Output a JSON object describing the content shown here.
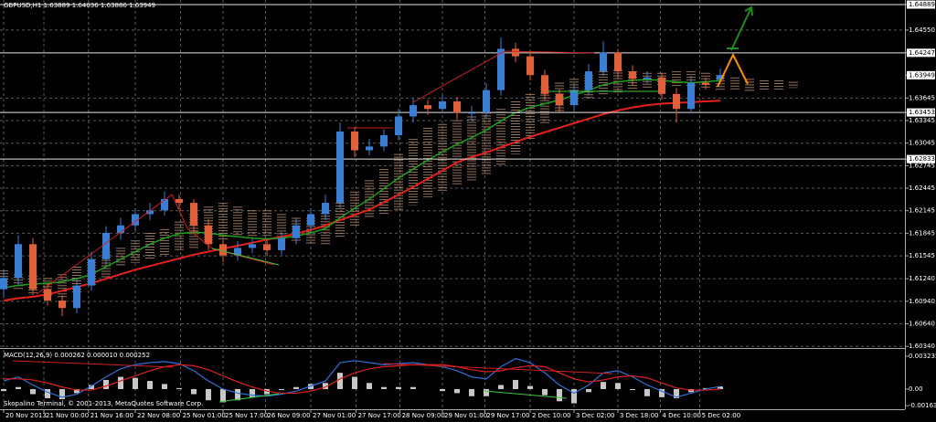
{
  "chart_data": {
    "type": "candlestick",
    "title": "GBPUSD,H1 1.63889 1.64036 1.63886 1.63949",
    "footer": "Skopalino Terminal, © 2001-2013, MetaQuotes Software Corp.",
    "up_color": "#3a7fd5",
    "down_color": "#e0603c",
    "open": [
      1.611,
      1.6125,
      1.617,
      1.611,
      1.6095,
      1.6085,
      1.6115,
      1.615,
      1.6185,
      1.6195,
      1.621,
      1.6215,
      1.623,
      1.6225,
      1.6195,
      1.617,
      1.6155,
      1.6165,
      1.617,
      1.6162,
      1.6178,
      1.6195,
      1.621,
      1.6225,
      1.632,
      1.6295,
      1.63,
      1.6315,
      1.634,
      1.6355,
      1.635,
      1.636,
      1.6345,
      1.6345,
      1.6375,
      1.643,
      1.642,
      1.6395,
      1.637,
      1.6355,
      1.6375,
      1.64,
      1.6425,
      1.64,
      1.639,
      1.6392,
      1.637,
      1.635,
      1.6385,
      1.63889
    ],
    "high": [
      1.6135,
      1.6182,
      1.6178,
      1.6118,
      1.6102,
      1.6124,
      1.616,
      1.6194,
      1.6205,
      1.6218,
      1.6225,
      1.624,
      1.6236,
      1.623,
      1.6203,
      1.6176,
      1.6174,
      1.6179,
      1.6176,
      1.6186,
      1.6204,
      1.6218,
      1.6236,
      1.6332,
      1.6326,
      1.631,
      1.6323,
      1.635,
      1.6364,
      1.6362,
      1.6368,
      1.6366,
      1.6354,
      1.6384,
      1.6445,
      1.6438,
      1.6426,
      1.6402,
      1.6376,
      1.6383,
      1.641,
      1.644,
      1.643,
      1.6408,
      1.64,
      1.6398,
      1.6378,
      1.6394,
      1.6392,
      1.64036
    ],
    "low": [
      1.61,
      1.6115,
      1.6102,
      1.6088,
      1.6074,
      1.6078,
      1.6108,
      1.6142,
      1.6176,
      1.6188,
      1.6202,
      1.6208,
      1.6216,
      1.6186,
      1.6162,
      1.6146,
      1.6148,
      1.6158,
      1.6154,
      1.6156,
      1.617,
      1.6188,
      1.6202,
      1.6218,
      1.6286,
      1.6288,
      1.6294,
      1.6308,
      1.6332,
      1.6342,
      1.6344,
      1.6336,
      1.6334,
      1.6338,
      1.6368,
      1.6412,
      1.6388,
      1.6362,
      1.6346,
      1.6348,
      1.6368,
      1.6394,
      1.6392,
      1.6382,
      1.6384,
      1.6362,
      1.6332,
      1.6344,
      1.6376,
      1.63886
    ],
    "close": [
      1.6125,
      1.617,
      1.611,
      1.6095,
      1.6085,
      1.6115,
      1.615,
      1.6185,
      1.6195,
      1.621,
      1.6215,
      1.623,
      1.6225,
      1.6195,
      1.617,
      1.6155,
      1.6165,
      1.617,
      1.6162,
      1.6178,
      1.6195,
      1.621,
      1.6225,
      1.632,
      1.6295,
      1.63,
      1.6315,
      1.634,
      1.6355,
      1.635,
      1.636,
      1.6345,
      1.6345,
      1.6375,
      1.643,
      1.642,
      1.6395,
      1.637,
      1.6355,
      1.6375,
      1.64,
      1.6425,
      1.64,
      1.639,
      1.6392,
      1.637,
      1.635,
      1.6385,
      1.6382,
      1.63949
    ],
    "series": [
      {
        "color": "#e8201c",
        "values": [
          1.6095,
          1.6098,
          1.61,
          1.6103,
          1.6108,
          1.6113,
          1.6118,
          1.6124,
          1.613,
          1.6136,
          1.6141,
          1.6146,
          1.6151,
          1.6156,
          1.616,
          1.6164,
          1.6168,
          1.6172,
          1.6176,
          1.618,
          1.6184,
          1.6189,
          1.6195,
          1.6202,
          1.6209,
          1.6216,
          1.6226,
          1.6236,
          1.6246,
          1.6257,
          1.6268,
          1.6279,
          1.6286,
          1.6292,
          1.6299,
          1.6306,
          1.6313,
          1.6319,
          1.6325,
          1.6331,
          1.6337,
          1.6343,
          1.6348,
          1.6352,
          1.6355,
          1.6357,
          1.6358,
          1.6359,
          1.636,
          1.6361
        ]
      },
      {
        "color": "#1e9e1e",
        "values": [
          1.6112,
          1.6115,
          1.6117,
          1.6118,
          1.612,
          1.6124,
          1.613,
          1.614,
          1.615,
          1.616,
          1.617,
          1.6178,
          1.6184,
          1.6186,
          1.6185,
          1.6182,
          1.618,
          1.6178,
          1.6177,
          1.6178,
          1.6181,
          1.6185,
          1.6191,
          1.6205,
          1.6218,
          1.623,
          1.6244,
          1.6258,
          1.627,
          1.6282,
          1.6293,
          1.6303,
          1.6312,
          1.6322,
          1.6334,
          1.6345,
          1.6352,
          1.6357,
          1.6362,
          1.6368,
          1.6375,
          1.6382,
          1.6386,
          1.6388,
          1.6389,
          1.6388,
          1.6386,
          1.6385,
          1.6386,
          1.6388
        ]
      }
    ],
    "cloud": {
      "color": "#c89a78",
      "upper": [
        1.6135,
        1.613,
        1.6128,
        1.6125,
        1.613,
        1.614,
        1.615,
        1.616,
        1.6165,
        1.6175,
        1.6185,
        1.619,
        1.62,
        1.621,
        1.622,
        1.6225,
        1.622,
        1.6215,
        1.6215,
        1.621,
        1.6205,
        1.6205,
        1.6215,
        1.6225,
        1.624,
        1.6255,
        1.627,
        1.629,
        1.631,
        1.6325,
        1.633,
        1.6335,
        1.634,
        1.6345,
        1.635,
        1.636,
        1.637,
        1.638,
        1.6385,
        1.639,
        1.6395,
        1.64,
        1.6402,
        1.64,
        1.6398,
        1.6398,
        1.64,
        1.64,
        1.6398,
        1.6395,
        1.6392,
        1.639,
        1.6388,
        1.6388,
        1.6386
      ],
      "lower": [
        1.611,
        1.6108,
        1.6105,
        1.61,
        1.6098,
        1.6105,
        1.6115,
        1.6125,
        1.614,
        1.6145,
        1.615,
        1.6155,
        1.616,
        1.6165,
        1.617,
        1.6175,
        1.618,
        1.618,
        1.618,
        1.6178,
        1.6172,
        1.617,
        1.6168,
        1.618,
        1.6195,
        1.6205,
        1.621,
        1.6215,
        1.6222,
        1.623,
        1.624,
        1.6248,
        1.6255,
        1.6262,
        1.6275,
        1.629,
        1.631,
        1.633,
        1.6345,
        1.6355,
        1.6362,
        1.6368,
        1.6372,
        1.6375,
        1.6378,
        1.638,
        1.638,
        1.6378,
        1.6376,
        1.6375,
        1.6374,
        1.6373,
        1.6374,
        1.6376,
        1.6378
      ]
    },
    "xlim": [
      -0.25,
      61.625
    ],
    "ylim": [
      1.6033,
      1.6495
    ],
    "yticks": [
      1.64889,
      {
        "value": 1.6455,
        "label": "1.64550"
      },
      1.64247,
      1.63949,
      1.63645,
      1.63453,
      1.63345,
      1.63045,
      1.62833,
      1.62745,
      1.62445,
      1.62145,
      1.61845,
      1.61545,
      {
        "value": 1.6124,
        "label": "1.61240"
      },
      {
        "value": 1.6094,
        "label": "1.60940"
      },
      {
        "value": 1.6064,
        "label": "1.60640"
      },
      {
        "value": 1.6034,
        "label": "1.60340"
      }
    ],
    "hlines": [
      1.64889,
      1.64247,
      1.63453,
      1.62833
    ],
    "xticks": [
      {
        "value": 0,
        "label": "20 Nov 2013"
      },
      {
        "value": 2.75,
        "label": "21 Nov 00:00"
      },
      {
        "value": 5.8,
        "label": "21 Nov 16:00"
      },
      {
        "value": 9,
        "label": "22 Nov 08:00"
      },
      {
        "value": 12.1,
        "label": "25 Nov 01:00"
      },
      {
        "value": 15,
        "label": "25 Nov 17:00"
      },
      {
        "value": 17.9,
        "label": "26 Nov 09:00"
      },
      {
        "value": 21,
        "label": "27 Nov 01:00"
      },
      {
        "value": 24.1,
        "label": "27 Nov 17:00"
      },
      {
        "value": 27.1,
        "label": "28 Nov 09:00"
      },
      {
        "value": 30,
        "label": "29 Nov 01:00"
      },
      {
        "value": 32.9,
        "label": "29 Nov 17:00"
      },
      {
        "value": 36,
        "label": "2 Dec 10:00"
      },
      {
        "value": 39,
        "label": "3 Dec 02:00"
      },
      {
        "value": 42,
        "label": "3 Dec 18:00"
      },
      {
        "value": 44.9,
        "label": "4 Dec 10:00"
      },
      {
        "value": 47.6,
        "label": "5 Dec 02:00"
      }
    ],
    "grid": true,
    "indicator": {
      "type": "macd",
      "title": "MACD(12,26,9) 0.000262 0.000010 0.000252",
      "histogram_color": "#c8c8c8",
      "histogram": [
        -0.0002,
        0.0002,
        -0.0005,
        -0.0009,
        -0.001,
        -0.0004,
        0.0004,
        0.0009,
        0.0012,
        0.0011,
        0.0008,
        0.0005,
        0.0001,
        -0.0005,
        -0.0011,
        -0.0013,
        -0.0011,
        -0.0008,
        -0.0005,
        -0.0001,
        0.0002,
        0.0005,
        0.0006,
        0.0016,
        0.0012,
        0.0006,
        0.0002,
        0.0002,
        0.0002,
        0.0,
        -0.0002,
        -0.0004,
        -0.0007,
        -0.0007,
        0.0004,
        0.0009,
        0.0003,
        -0.0006,
        -0.0012,
        -0.0014,
        -0.0003,
        0.0007,
        0.0006,
        -0.0001,
        -0.0007,
        -0.0008,
        -0.0009,
        -0.0003,
        0.0001,
        0.000252
      ],
      "main": {
        "color": "#2f6fd8",
        "values": [
          0.0008,
          0.0012,
          0.0004,
          -0.0003,
          -0.0008,
          -0.0005,
          0.0003,
          0.0012,
          0.002,
          0.0024,
          0.0026,
          0.0027,
          0.0025,
          0.0018,
          0.0008,
          0.0,
          -0.0004,
          -0.0006,
          -0.0007,
          -0.0005,
          -0.0002,
          0.0003,
          0.0008,
          0.0026,
          0.0028,
          0.0026,
          0.0024,
          0.0025,
          0.0026,
          0.0024,
          0.0022,
          0.0018,
          0.0012,
          0.001,
          0.0022,
          0.003,
          0.0026,
          0.0016,
          0.0004,
          -0.0004,
          0.0004,
          0.0016,
          0.0018,
          0.0012,
          0.0004,
          -0.0002,
          -0.0008,
          -0.0004,
          0.0,
          0.000262
        ]
      },
      "signal": {
        "color": "#e02020",
        "values": [
          0.001,
          0.001,
          0.0009,
          0.0006,
          0.0002,
          -0.0001,
          -0.0001,
          0.0003,
          0.0008,
          0.0013,
          0.0018,
          0.0022,
          0.0024,
          0.0023,
          0.0019,
          0.0013,
          0.0007,
          0.0002,
          -0.0002,
          -0.0004,
          -0.0004,
          -0.0002,
          0.0002,
          0.001,
          0.0016,
          0.002,
          0.0022,
          0.0023,
          0.0024,
          0.0024,
          0.0024,
          0.0022,
          0.0019,
          0.0017,
          0.0018,
          0.0021,
          0.0023,
          0.0022,
          0.0016,
          0.001,
          0.0007,
          0.0009,
          0.0012,
          0.0013,
          0.0011,
          0.0006,
          0.0001,
          -0.0001,
          -0.0001,
          1e-05
        ]
      },
      "ylim": [
        -0.00198,
        0.00386
      ],
      "yticks": [
        0.003235,
        {
          "value": 0,
          "label": "0.00"
        },
        -0.001631
      ]
    }
  }
}
